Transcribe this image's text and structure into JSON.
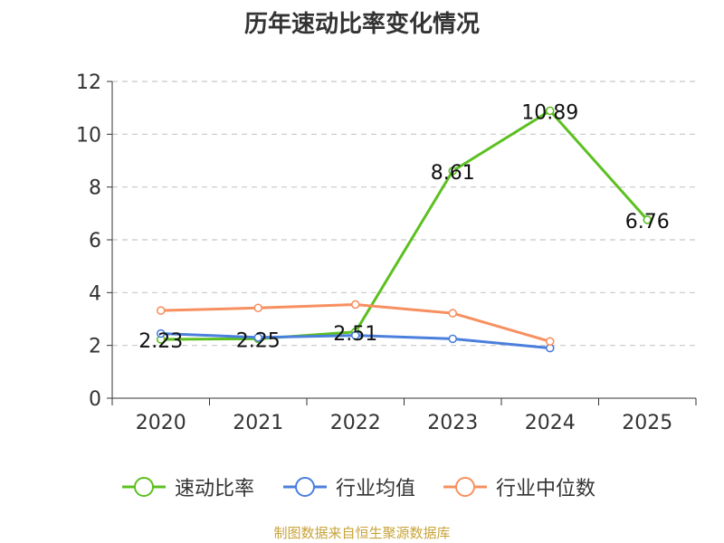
{
  "chart_data": {
    "type": "line",
    "title": "历年速动比率变化情况",
    "xlabel": "",
    "ylabel": "",
    "categories": [
      "2020",
      "2021",
      "2022",
      "2023",
      "2024",
      "2025"
    ],
    "ylim": [
      0,
      12
    ],
    "yticks": [
      0,
      2,
      4,
      6,
      8,
      10,
      12
    ],
    "grid": true,
    "legend_position": "bottom",
    "series": [
      {
        "name": "速动比率",
        "color": "#5cc020",
        "values": [
          2.23,
          2.25,
          2.51,
          8.61,
          10.89,
          6.76
        ],
        "labels": [
          "2.23",
          "2.25",
          "2.51",
          "8.61",
          "10.89",
          "6.76"
        ]
      },
      {
        "name": "行业均值",
        "color": "#4a7fdc",
        "values": [
          2.45,
          2.3,
          2.38,
          2.25,
          1.9,
          null
        ]
      },
      {
        "name": "行业中位数",
        "color": "#f79060",
        "values": [
          3.32,
          3.42,
          3.55,
          3.22,
          2.15,
          null
        ]
      }
    ]
  },
  "footer": {
    "source": "制图数据来自恒生聚源数据库"
  }
}
